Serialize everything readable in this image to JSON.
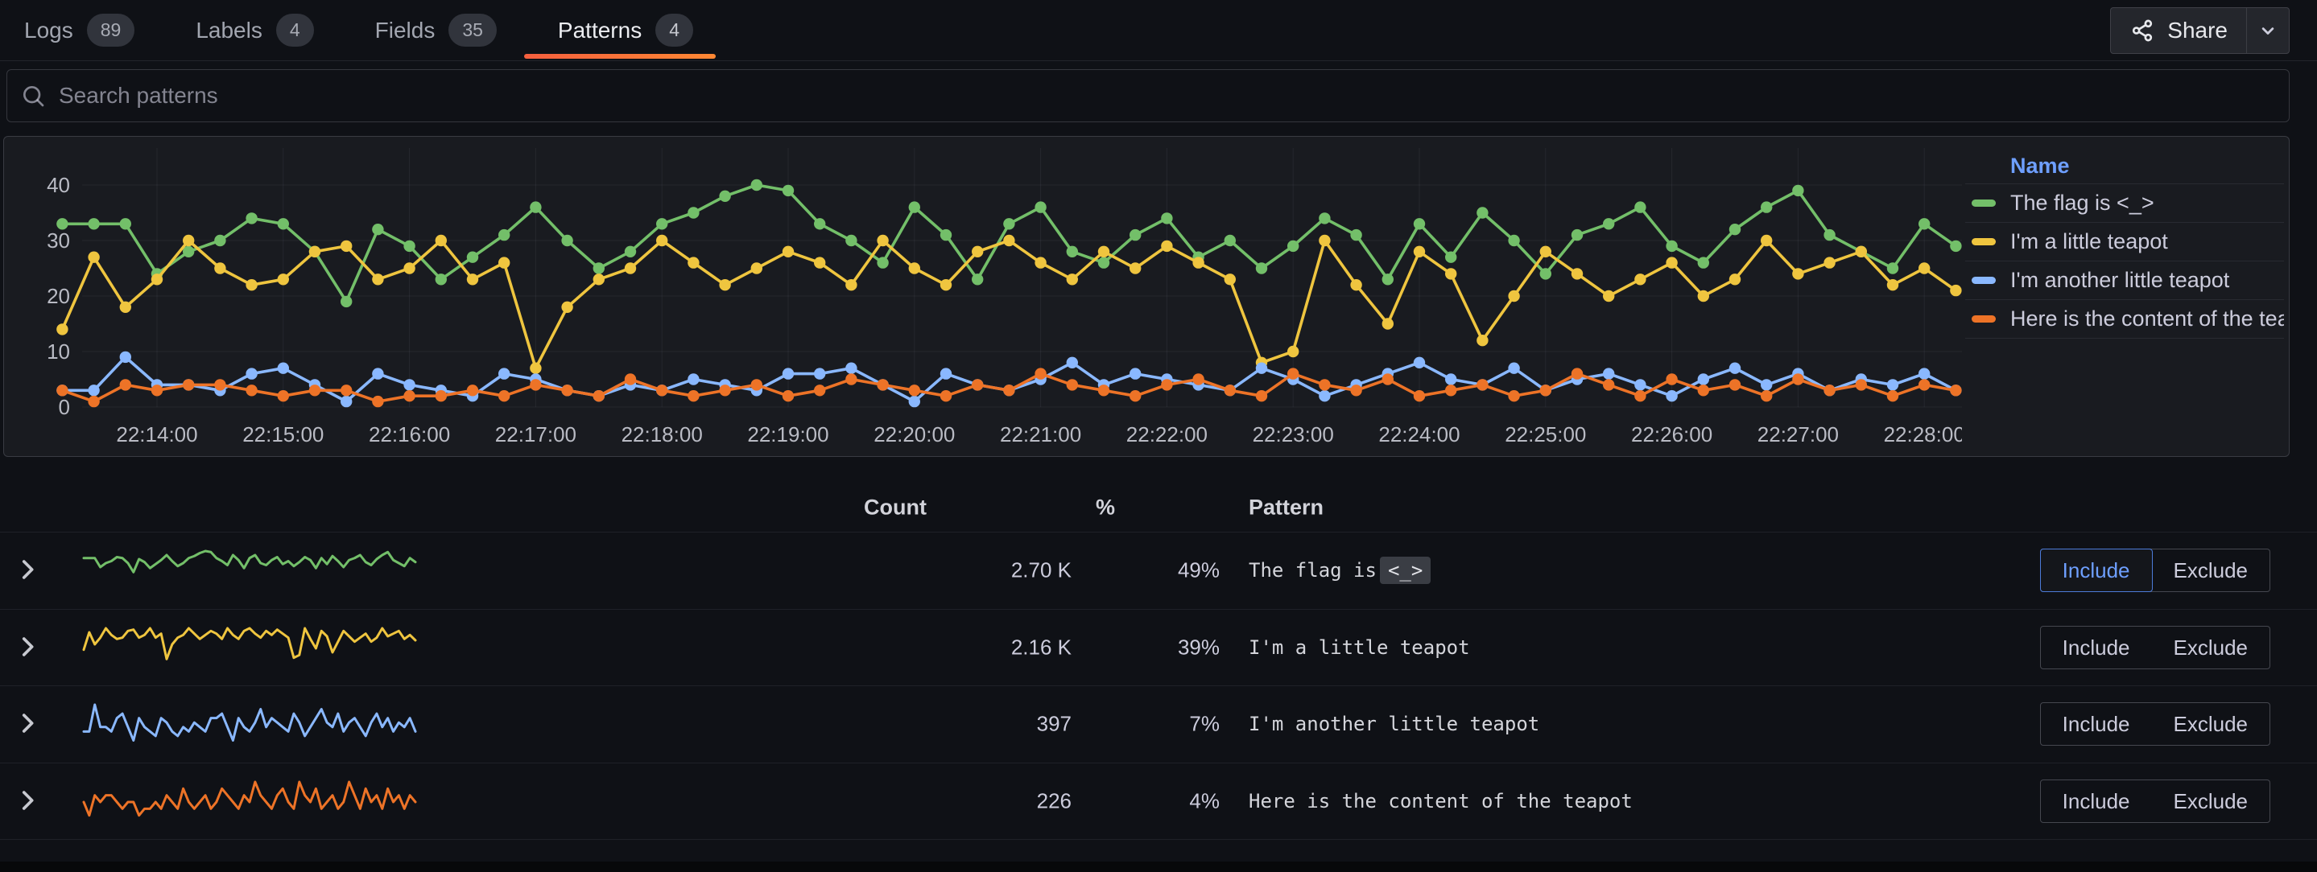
{
  "tabs": [
    {
      "label": "Logs",
      "badge": "89",
      "active": false
    },
    {
      "label": "Labels",
      "badge": "4",
      "active": false
    },
    {
      "label": "Fields",
      "badge": "35",
      "active": false
    },
    {
      "label": "Patterns",
      "badge": "4",
      "active": true
    }
  ],
  "share": {
    "label": "Share"
  },
  "search": {
    "placeholder": "Search patterns"
  },
  "chart_data": {
    "type": "line",
    "title": "",
    "x_start": "22:13:15",
    "x_step_seconds": 15,
    "x_tick_labels": [
      "22:14:00",
      "22:15:00",
      "22:16:00",
      "22:17:00",
      "22:18:00",
      "22:19:00",
      "22:20:00",
      "22:21:00",
      "22:22:00",
      "22:23:00",
      "22:24:00",
      "22:25:00",
      "22:26:00",
      "22:27:00",
      "22:28:00"
    ],
    "y_ticks": [
      0,
      10,
      20,
      30,
      40
    ],
    "ylim": [
      0,
      45
    ],
    "grid": true,
    "legend_position": "right",
    "legend_title": "Name",
    "series": [
      {
        "name": "The flag is <_>",
        "color": "#73BF69",
        "values": [
          33,
          33,
          33,
          24,
          28,
          30,
          34,
          33,
          28,
          19,
          32,
          29,
          23,
          27,
          31,
          36,
          30,
          25,
          28,
          33,
          35,
          38,
          40,
          39,
          33,
          30,
          26,
          36,
          31,
          23,
          33,
          36,
          28,
          26,
          31,
          34,
          27,
          30,
          25,
          29,
          34,
          31,
          23,
          33,
          27,
          35,
          30,
          24,
          31,
          33,
          36,
          29,
          26,
          32,
          36,
          39,
          31,
          28,
          25,
          33,
          29
        ]
      },
      {
        "name": "I'm a little teapot",
        "color": "#EFC53F",
        "values": [
          14,
          27,
          18,
          23,
          30,
          25,
          22,
          23,
          28,
          29,
          23,
          25,
          30,
          23,
          26,
          7,
          18,
          23,
          25,
          30,
          26,
          22,
          25,
          28,
          26,
          22,
          30,
          25,
          22,
          28,
          30,
          26,
          23,
          28,
          25,
          29,
          26,
          23,
          8,
          10,
          30,
          22,
          15,
          28,
          24,
          12,
          20,
          28,
          24,
          20,
          23,
          26,
          20,
          23,
          30,
          24,
          26,
          28,
          22,
          25,
          21
        ]
      },
      {
        "name": "I'm another little teapot",
        "color": "#8AB8FF",
        "values": [
          3,
          3,
          9,
          4,
          4,
          3,
          6,
          7,
          4,
          1,
          6,
          4,
          3,
          2,
          6,
          5,
          3,
          2,
          4,
          3,
          5,
          4,
          3,
          6,
          6,
          7,
          4,
          1,
          6,
          4,
          3,
          5,
          8,
          4,
          6,
          5,
          4,
          3,
          7,
          5,
          2,
          4,
          6,
          8,
          5,
          4,
          7,
          3,
          5,
          6,
          4,
          2,
          5,
          7,
          4,
          6,
          3,
          5,
          4,
          6,
          3
        ]
      },
      {
        "name": "Here is the content of the teapot",
        "color": "#ED7327",
        "values": [
          3,
          1,
          4,
          3,
          4,
          4,
          3,
          2,
          3,
          3,
          1,
          2,
          2,
          3,
          2,
          4,
          3,
          2,
          5,
          3,
          2,
          3,
          4,
          2,
          3,
          5,
          4,
          3,
          2,
          4,
          3,
          6,
          4,
          3,
          2,
          4,
          5,
          3,
          2,
          6,
          4,
          3,
          5,
          2,
          3,
          4,
          2,
          3,
          6,
          4,
          2,
          5,
          3,
          4,
          2,
          5,
          3,
          4,
          2,
          4,
          3
        ]
      }
    ]
  },
  "table": {
    "headers": {
      "count": "Count",
      "percent": "%",
      "pattern": "Pattern"
    },
    "actions": {
      "include": "Include",
      "exclude": "Exclude"
    },
    "rows": [
      {
        "count": "2.70 K",
        "percent": "49%",
        "pattern": "The flag is <_>",
        "pattern_prefix": "The flag is",
        "pattern_token": "<_>",
        "series": 0,
        "selected": "include"
      },
      {
        "count": "2.16 K",
        "percent": "39%",
        "pattern": "I'm a little teapot",
        "series": 1,
        "selected": null
      },
      {
        "count": "397",
        "percent": "7%",
        "pattern": "I'm another little teapot",
        "series": 2,
        "selected": null
      },
      {
        "count": "226",
        "percent": "4%",
        "pattern": "Here is the content of the teapot",
        "series": 3,
        "selected": null
      }
    ]
  },
  "colors": {
    "active_tab_underline_start": "#F55F3E",
    "active_tab_underline_end": "#FF8833",
    "legend_title_blue": "#6E9FFF",
    "include_selected_border": "#4C7BD9",
    "include_selected_text": "#6E9FFF"
  }
}
